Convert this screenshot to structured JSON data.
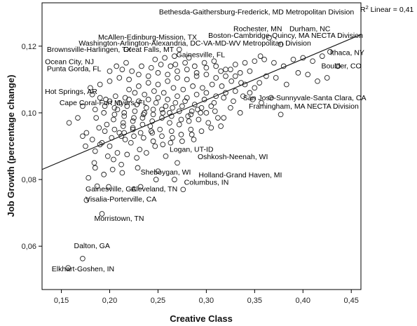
{
  "chart_data": {
    "type": "scatter",
    "xlabel": "Creative Class",
    "ylabel": "Job Growth (percentage change)",
    "xlim": [
      0.13,
      0.46
    ],
    "ylim": [
      0.047,
      0.133
    ],
    "x_ticks": [
      "0,15",
      "0,20",
      "0,25",
      "0,30",
      "0,35",
      "0,40",
      "0,45"
    ],
    "x_tick_values": [
      0.15,
      0.2,
      0.25,
      0.3,
      0.35,
      0.4,
      0.45
    ],
    "y_ticks": [
      "0,06",
      "0,08",
      "0,10",
      "0,12"
    ],
    "y_tick_values": [
      0.06,
      0.08,
      0.1,
      0.12
    ],
    "grid": false,
    "marker": "open-circle",
    "fit_line": {
      "type": "linear",
      "label_prefix": "R",
      "label_sup": "2",
      "label_suffix": " Linear = 0,41",
      "start": [
        0.13,
        0.083
      ],
      "end": [
        0.46,
        0.1235
      ]
    },
    "annotations": [
      {
        "text": "Bethesda-Gaithersburg-Frederick, MD Metropolitan Division",
        "x": 0.251,
        "y": 0.1295
      },
      {
        "text": "Rochester, MN",
        "x": 0.328,
        "y": 0.1245
      },
      {
        "text": "Durham, NC",
        "x": 0.386,
        "y": 0.1245
      },
      {
        "text": "Boston-Cambridge-Quincy, MA NECTA Division",
        "x": 0.302,
        "y": 0.1225
      },
      {
        "text": "McAllen-Edinburg-Mission, TX",
        "x": 0.188,
        "y": 0.122
      },
      {
        "text": "Washington-Arlington-Alexandria, DC-VA-MD-WV Metropolitan Division",
        "x": 0.168,
        "y": 0.1202
      },
      {
        "text": "Brownsville-Harlingen, TX",
        "x": 0.135,
        "y": 0.1183
      },
      {
        "text": "Great Falls, MT",
        "x": 0.214,
        "y": 0.1183
      },
      {
        "text": "Gainesville, FL",
        "x": 0.269,
        "y": 0.1167
      },
      {
        "text": "Ithaca, NY",
        "x": 0.428,
        "y": 0.1173
      },
      {
        "text": "Ocean City, NJ",
        "x": 0.133,
        "y": 0.1146
      },
      {
        "text": "Boulder, CO",
        "x": 0.419,
        "y": 0.1133
      },
      {
        "text": "Punta Gorda, FL",
        "x": 0.135,
        "y": 0.1125
      },
      {
        "text": "Hot Springs, AR",
        "x": 0.133,
        "y": 0.1057
      },
      {
        "text": "San Jose-Sunnyvale-Santa Clara, CA",
        "x": 0.338,
        "y": 0.1038
      },
      {
        "text": "Cape Coral-Fort Myers, FL",
        "x": 0.148,
        "y": 0.1023
      },
      {
        "text": "Framingham, MA NECTA Division",
        "x": 0.344,
        "y": 0.1013
      },
      {
        "text": "Logan, UT-ID",
        "x": 0.262,
        "y": 0.0883
      },
      {
        "text": "Oshkosh-Neenah, WI",
        "x": 0.291,
        "y": 0.0861
      },
      {
        "text": "Sheboygan, WI",
        "x": 0.232,
        "y": 0.0815
      },
      {
        "text": "Holland-Grand Haven, MI",
        "x": 0.292,
        "y": 0.0806
      },
      {
        "text": "Columbus, IN",
        "x": 0.277,
        "y": 0.0784
      },
      {
        "text": "Gainesville, GA",
        "x": 0.175,
        "y": 0.0764
      },
      {
        "text": "Cleveland, TN",
        "x": 0.222,
        "y": 0.0764
      },
      {
        "text": "Visalia-Porterville, CA",
        "x": 0.175,
        "y": 0.0734
      },
      {
        "text": "Morristown, TN",
        "x": 0.184,
        "y": 0.0676
      },
      {
        "text": "Dalton, GA",
        "x": 0.163,
        "y": 0.0594
      },
      {
        "text": "Elkhart-Goshen, IN",
        "x": 0.14,
        "y": 0.0525
      }
    ],
    "points": [
      [
        0.157,
        0.0535
      ],
      [
        0.172,
        0.0563
      ],
      [
        0.192,
        0.0697
      ],
      [
        0.176,
        0.0738
      ],
      [
        0.187,
        0.078
      ],
      [
        0.199,
        0.0778
      ],
      [
        0.232,
        0.0778
      ],
      [
        0.276,
        0.077
      ],
      [
        0.248,
        0.08
      ],
      [
        0.267,
        0.08
      ],
      [
        0.25,
        0.0825
      ],
      [
        0.213,
        0.082
      ],
      [
        0.229,
        0.0835
      ],
      [
        0.27,
        0.085
      ],
      [
        0.204,
        0.086
      ],
      [
        0.184,
        0.085
      ],
      [
        0.258,
        0.087
      ],
      [
        0.231,
        0.089
      ],
      [
        0.247,
        0.09
      ],
      [
        0.216,
        0.092
      ],
      [
        0.263,
        0.091
      ],
      [
        0.287,
        0.092
      ],
      [
        0.2,
        0.09
      ],
      [
        0.21,
        0.094
      ],
      [
        0.243,
        0.0945
      ],
      [
        0.224,
        0.095
      ],
      [
        0.189,
        0.0955
      ],
      [
        0.197,
        0.0965
      ],
      [
        0.176,
        0.094
      ],
      [
        0.158,
        0.097
      ],
      [
        0.186,
        0.0985
      ],
      [
        0.194,
        0.1
      ],
      [
        0.205,
        0.0995
      ],
      [
        0.215,
        0.099
      ],
      [
        0.226,
        0.1005
      ],
      [
        0.236,
        0.1
      ],
      [
        0.245,
        0.0995
      ],
      [
        0.254,
        0.101
      ],
      [
        0.262,
        0.1
      ],
      [
        0.272,
        0.1005
      ],
      [
        0.281,
        0.099
      ],
      [
        0.291,
        0.101
      ],
      [
        0.3,
        0.1
      ],
      [
        0.309,
        0.1005
      ],
      [
        0.318,
        0.0985
      ],
      [
        0.208,
        0.101
      ],
      [
        0.218,
        0.102
      ],
      [
        0.228,
        0.1025
      ],
      [
        0.238,
        0.1015
      ],
      [
        0.248,
        0.103
      ],
      [
        0.258,
        0.102
      ],
      [
        0.268,
        0.103
      ],
      [
        0.278,
        0.1035
      ],
      [
        0.288,
        0.1025
      ],
      [
        0.298,
        0.104
      ],
      [
        0.308,
        0.103
      ],
      [
        0.318,
        0.1045
      ],
      [
        0.328,
        0.1035
      ],
      [
        0.338,
        0.105
      ],
      [
        0.348,
        0.104
      ],
      [
        0.196,
        0.104
      ],
      [
        0.206,
        0.105
      ],
      [
        0.216,
        0.1045
      ],
      [
        0.226,
        0.106
      ],
      [
        0.236,
        0.1055
      ],
      [
        0.246,
        0.1065
      ],
      [
        0.256,
        0.106
      ],
      [
        0.266,
        0.1075
      ],
      [
        0.276,
        0.107
      ],
      [
        0.286,
        0.108
      ],
      [
        0.296,
        0.1075
      ],
      [
        0.306,
        0.1085
      ],
      [
        0.316,
        0.108
      ],
      [
        0.326,
        0.1095
      ],
      [
        0.336,
        0.109
      ],
      [
        0.18,
        0.1075
      ],
      [
        0.19,
        0.1085
      ],
      [
        0.2,
        0.1095
      ],
      [
        0.21,
        0.1105
      ],
      [
        0.22,
        0.11
      ],
      [
        0.23,
        0.1115
      ],
      [
        0.24,
        0.111
      ],
      [
        0.25,
        0.112
      ],
      [
        0.26,
        0.1115
      ],
      [
        0.27,
        0.1125
      ],
      [
        0.28,
        0.113
      ],
      [
        0.29,
        0.112
      ],
      [
        0.3,
        0.1135
      ],
      [
        0.31,
        0.114
      ],
      [
        0.32,
        0.113
      ],
      [
        0.33,
        0.1145
      ],
      [
        0.34,
        0.115
      ],
      [
        0.35,
        0.1155
      ],
      [
        0.36,
        0.116
      ],
      [
        0.37,
        0.115
      ],
      [
        0.38,
        0.114
      ],
      [
        0.39,
        0.116
      ],
      [
        0.4,
        0.1165
      ],
      [
        0.41,
        0.1155
      ],
      [
        0.42,
        0.117
      ],
      [
        0.428,
        0.1183
      ],
      [
        0.436,
        0.114
      ],
      [
        0.365,
        0.1225
      ],
      [
        0.377,
        0.1205
      ],
      [
        0.356,
        0.117
      ],
      [
        0.345,
        0.1125
      ],
      [
        0.362,
        0.111
      ],
      [
        0.372,
        0.1105
      ],
      [
        0.383,
        0.1085
      ],
      [
        0.395,
        0.112
      ],
      [
        0.405,
        0.1115
      ],
      [
        0.415,
        0.1095
      ],
      [
        0.425,
        0.1105
      ],
      [
        0.357,
        0.103
      ],
      [
        0.367,
        0.1045
      ],
      [
        0.377,
        0.0995
      ],
      [
        0.335,
        0.1
      ],
      [
        0.325,
        0.1015
      ],
      [
        0.167,
        0.0985
      ],
      [
        0.172,
        0.093
      ],
      [
        0.182,
        0.092
      ],
      [
        0.192,
        0.091
      ],
      [
        0.202,
        0.0925
      ],
      [
        0.212,
        0.093
      ],
      [
        0.222,
        0.091
      ],
      [
        0.232,
        0.094
      ],
      [
        0.242,
        0.096
      ],
      [
        0.252,
        0.095
      ],
      [
        0.262,
        0.097
      ],
      [
        0.272,
        0.0965
      ],
      [
        0.282,
        0.0975
      ],
      [
        0.292,
        0.098
      ],
      [
        0.302,
        0.097
      ],
      [
        0.312,
        0.0985
      ],
      [
        0.198,
        0.087
      ],
      [
        0.208,
        0.088
      ],
      [
        0.218,
        0.0875
      ],
      [
        0.228,
        0.0865
      ],
      [
        0.238,
        0.088
      ],
      [
        0.194,
        0.0815
      ],
      [
        0.203,
        0.083
      ],
      [
        0.212,
        0.0845
      ],
      [
        0.185,
        0.0835
      ],
      [
        0.178,
        0.0805
      ],
      [
        0.185,
        0.0885
      ],
      [
        0.19,
        0.0905
      ],
      [
        0.175,
        0.09
      ],
      [
        0.214,
        0.096
      ],
      [
        0.224,
        0.0975
      ],
      [
        0.234,
        0.0985
      ],
      [
        0.244,
        0.0975
      ],
      [
        0.254,
        0.0985
      ],
      [
        0.264,
        0.099
      ],
      [
        0.274,
        0.098
      ],
      [
        0.284,
        0.0995
      ],
      [
        0.294,
        0.1
      ],
      [
        0.204,
        0.098
      ],
      [
        0.214,
        0.097
      ],
      [
        0.224,
        0.0955
      ],
      [
        0.234,
        0.0965
      ],
      [
        0.244,
        0.094
      ],
      [
        0.254,
        0.093
      ],
      [
        0.264,
        0.0945
      ],
      [
        0.274,
        0.0935
      ],
      [
        0.284,
        0.095
      ],
      [
        0.22,
        0.107
      ],
      [
        0.23,
        0.108
      ],
      [
        0.24,
        0.109
      ],
      [
        0.25,
        0.1085
      ],
      [
        0.26,
        0.1095
      ],
      [
        0.27,
        0.1105
      ],
      [
        0.28,
        0.11
      ],
      [
        0.29,
        0.111
      ],
      [
        0.3,
        0.1115
      ],
      [
        0.31,
        0.1105
      ],
      [
        0.32,
        0.111
      ],
      [
        0.213,
        0.113
      ],
      [
        0.223,
        0.1125
      ],
      [
        0.233,
        0.114
      ],
      [
        0.243,
        0.1135
      ],
      [
        0.253,
        0.1145
      ],
      [
        0.263,
        0.114
      ],
      [
        0.2,
        0.1125
      ],
      [
        0.207,
        0.114
      ],
      [
        0.217,
        0.115
      ],
      [
        0.245,
        0.101
      ],
      [
        0.255,
        0.1
      ],
      [
        0.235,
        0.0995
      ],
      [
        0.225,
        0.0985
      ],
      [
        0.215,
        0.1
      ],
      [
        0.205,
        0.1015
      ],
      [
        0.195,
        0.102
      ],
      [
        0.265,
        0.1015
      ],
      [
        0.275,
        0.102
      ],
      [
        0.285,
        0.1005
      ],
      [
        0.295,
        0.1015
      ],
      [
        0.305,
        0.102
      ],
      [
        0.24,
        0.104
      ],
      [
        0.25,
        0.1045
      ],
      [
        0.26,
        0.104
      ],
      [
        0.27,
        0.105
      ],
      [
        0.28,
        0.1045
      ],
      [
        0.29,
        0.1055
      ],
      [
        0.3,
        0.106
      ],
      [
        0.31,
        0.105
      ],
      [
        0.32,
        0.106
      ],
      [
        0.33,
        0.1065
      ],
      [
        0.23,
        0.1035
      ],
      [
        0.22,
        0.104
      ],
      [
        0.21,
        0.103
      ],
      [
        0.2,
        0.1035
      ],
      [
        0.19,
        0.1045
      ],
      [
        0.185,
        0.101
      ],
      [
        0.195,
        0.0945
      ],
      [
        0.205,
        0.095
      ],
      [
        0.215,
        0.094
      ],
      [
        0.225,
        0.093
      ],
      [
        0.235,
        0.0925
      ],
      [
        0.245,
        0.0915
      ],
      [
        0.255,
        0.0905
      ],
      [
        0.265,
        0.0925
      ],
      [
        0.275,
        0.0915
      ],
      [
        0.285,
        0.0935
      ],
      [
        0.295,
        0.0945
      ],
      [
        0.305,
        0.0955
      ],
      [
        0.315,
        0.096
      ],
      [
        0.182,
        0.1055
      ],
      [
        0.172,
        0.102
      ],
      [
        0.33,
        0.111
      ],
      [
        0.34,
        0.1085
      ],
      [
        0.35,
        0.1075
      ],
      [
        0.345,
        0.106
      ],
      [
        0.355,
        0.109
      ],
      [
        0.315,
        0.1125
      ],
      [
        0.325,
        0.113
      ],
      [
        0.335,
        0.112
      ],
      [
        0.268,
        0.1145
      ],
      [
        0.278,
        0.115
      ],
      [
        0.288,
        0.114
      ],
      [
        0.298,
        0.115
      ],
      [
        0.308,
        0.1155
      ],
      [
        0.247,
        0.116
      ],
      [
        0.257,
        0.1165
      ],
      [
        0.267,
        0.117
      ],
      [
        0.272,
        0.119
      ],
      [
        0.282,
        0.1165
      ]
    ]
  }
}
